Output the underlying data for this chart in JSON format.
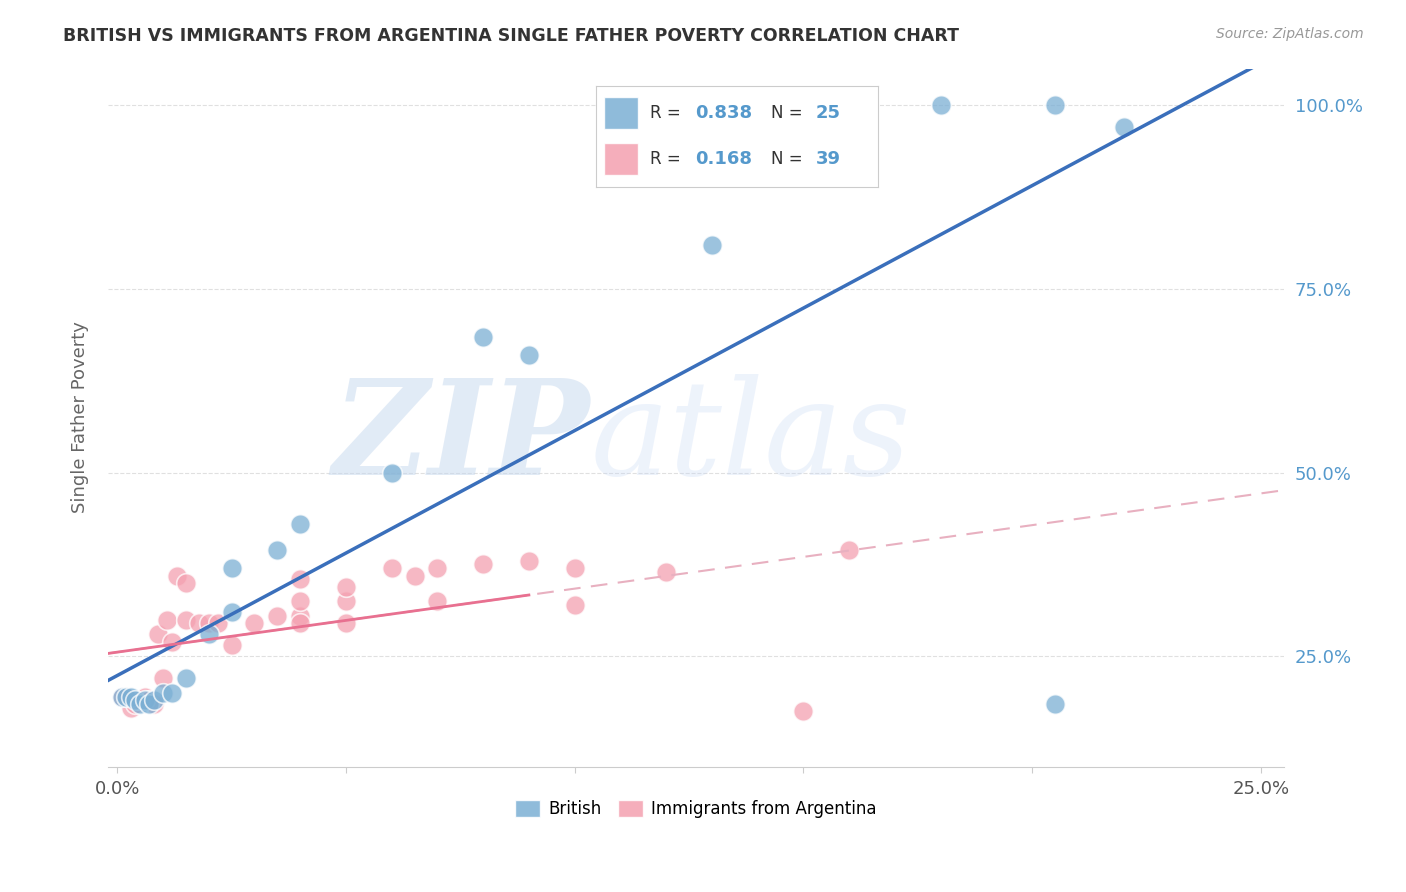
{
  "title": "BRITISH VS IMMIGRANTS FROM ARGENTINA SINGLE FATHER POVERTY CORRELATION CHART",
  "source": "Source: ZipAtlas.com",
  "ylabel": "Single Father Poverty",
  "watermark_zip": "ZIP",
  "watermark_atlas": "atlas",
  "british_R": 0.838,
  "british_N": 25,
  "argentina_R": 0.168,
  "argentina_N": 39,
  "xlim": [
    -0.002,
    0.255
  ],
  "ylim": [
    0.1,
    1.05
  ],
  "xticks": [
    0.0,
    0.05,
    0.1,
    0.15,
    0.2,
    0.25
  ],
  "xtick_labels": [
    "0.0%",
    "",
    "",
    "",
    "",
    "25.0%"
  ],
  "yticks_right": [
    0.25,
    0.5,
    0.75,
    1.0
  ],
  "ytick_labels_right": [
    "25.0%",
    "50.0%",
    "75.0%",
    "100.0%"
  ],
  "british_color": "#7bafd4",
  "argentina_color": "#f4a0b0",
  "british_line_color": "#3a6fbb",
  "argentina_solid_color": "#e87090",
  "argentina_dashed_color": "#e8b0c0",
  "grid_color": "#e0e0e0",
  "right_tick_color": "#5599cc",
  "title_color": "#333333",
  "british_x": [
    0.001,
    0.002,
    0.003,
    0.004,
    0.005,
    0.006,
    0.007,
    0.008,
    0.01,
    0.012,
    0.015,
    0.02,
    0.025,
    0.025,
    0.035,
    0.04,
    0.06,
    0.08,
    0.09,
    0.13,
    0.155,
    0.18,
    0.205,
    0.205,
    0.22
  ],
  "british_y": [
    0.195,
    0.195,
    0.195,
    0.19,
    0.185,
    0.19,
    0.185,
    0.19,
    0.2,
    0.2,
    0.22,
    0.28,
    0.31,
    0.37,
    0.395,
    0.43,
    0.5,
    0.685,
    0.66,
    0.81,
    1.0,
    1.0,
    1.0,
    0.185,
    0.97
  ],
  "argentina_x": [
    0.001,
    0.002,
    0.003,
    0.004,
    0.005,
    0.006,
    0.007,
    0.008,
    0.009,
    0.01,
    0.011,
    0.012,
    0.013,
    0.015,
    0.015,
    0.018,
    0.02,
    0.022,
    0.025,
    0.03,
    0.035,
    0.04,
    0.04,
    0.04,
    0.04,
    0.05,
    0.05,
    0.05,
    0.06,
    0.065,
    0.07,
    0.07,
    0.08,
    0.09,
    0.1,
    0.1,
    0.12,
    0.15,
    0.16
  ],
  "argentina_y": [
    0.195,
    0.195,
    0.18,
    0.185,
    0.19,
    0.195,
    0.19,
    0.185,
    0.28,
    0.22,
    0.3,
    0.27,
    0.36,
    0.35,
    0.3,
    0.295,
    0.295,
    0.295,
    0.265,
    0.295,
    0.305,
    0.305,
    0.325,
    0.355,
    0.295,
    0.325,
    0.345,
    0.295,
    0.37,
    0.36,
    0.37,
    0.325,
    0.375,
    0.38,
    0.37,
    0.32,
    0.365,
    0.175,
    0.395
  ],
  "background_color": "#ffffff"
}
